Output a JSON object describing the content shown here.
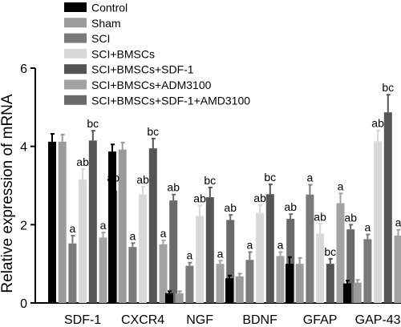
{
  "chart_data": {
    "type": "bar",
    "ylabel": "Relative expression of mRNA",
    "ylim": [
      0,
      6
    ],
    "yticks": [
      0,
      2,
      4,
      6
    ],
    "categories": [
      "SDF-1",
      "CXCR4",
      "NGF",
      "BDNF",
      "GFAP",
      "GAP-43"
    ],
    "legend_position": "top-left",
    "series": [
      {
        "name": "Control",
        "color": "#000000",
        "values": [
          4.12,
          3.87,
          0.25,
          0.63,
          1.0,
          0.5
        ],
        "errors": [
          0.2,
          0.18,
          0.05,
          0.07,
          0.17,
          0.07
        ],
        "labels": [
          "",
          "",
          "",
          "",
          "",
          ""
        ]
      },
      {
        "name": "Sham",
        "color": "#9b9b9b",
        "values": [
          4.12,
          3.92,
          0.25,
          0.68,
          1.0,
          0.52
        ],
        "errors": [
          0.18,
          0.18,
          0.05,
          0.07,
          0.15,
          0.07
        ],
        "labels": [
          "",
          "",
          "",
          "",
          "",
          ""
        ]
      },
      {
        "name": "SCI",
        "color": "#7a7a7a",
        "values": [
          1.52,
          1.43,
          0.95,
          1.1,
          2.77,
          1.63
        ],
        "errors": [
          0.2,
          0.1,
          0.08,
          0.2,
          0.25,
          0.12
        ],
        "labels": [
          "a",
          "a",
          "a",
          "a",
          "a",
          "a"
        ]
      },
      {
        "name": "SCI+BMSCs",
        "color": "#d8d8d8",
        "values": [
          3.15,
          2.77,
          2.22,
          2.3,
          1.77,
          4.13
        ],
        "errors": [
          0.27,
          0.2,
          0.27,
          0.2,
          0.25,
          0.28
        ],
        "labels": [
          "ab",
          "ab",
          "ab",
          "ab",
          "ab",
          "ab"
        ]
      },
      {
        "name": "SCI+BMSCs+SDF-1",
        "color": "#555555",
        "values": [
          4.15,
          3.95,
          2.7,
          2.78,
          1.0,
          4.87
        ],
        "errors": [
          0.25,
          0.25,
          0.25,
          0.25,
          0.13,
          0.45
        ],
        "labels": [
          "bc",
          "bc",
          "bc",
          "bc",
          "bc",
          "bc"
        ]
      },
      {
        "name": "SCI+BMSCs+ADM3100",
        "color": "#a2a2a2",
        "values": [
          1.67,
          1.5,
          1.0,
          1.2,
          2.55,
          1.72
        ],
        "errors": [
          0.13,
          0.1,
          0.08,
          0.1,
          0.25,
          0.15
        ],
        "labels": [
          "a",
          "a",
          "a",
          "a",
          "a",
          "a"
        ]
      },
      {
        "name": "SCI+BMSCs+SDF-1+AMD3100",
        "color": "#6a6a6a",
        "values": [
          2.87,
          2.62,
          2.12,
          2.15,
          1.88,
          3.87
        ],
        "errors": [
          0.15,
          0.15,
          0.13,
          0.12,
          0.12,
          0.35
        ],
        "labels": [
          "ab",
          "ab",
          "ab",
          "ab",
          "ab",
          "ab"
        ]
      }
    ]
  }
}
